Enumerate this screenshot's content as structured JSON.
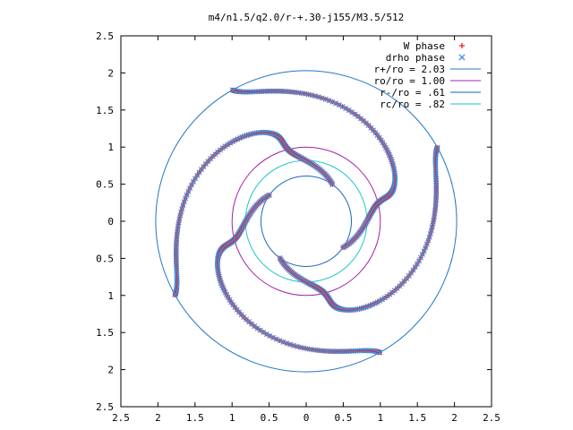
{
  "chart_data": {
    "type": "scatter",
    "title": "m4/n1.5/q2.0/r-+.30-j155/M3.5/512",
    "xlim": [
      -2.5,
      2.5
    ],
    "ylim": [
      -2.5,
      2.5
    ],
    "x_ticks": [
      "2.5",
      "2",
      "1.5",
      "1",
      "0.5",
      "0",
      "0.5",
      "1",
      "1.5",
      "2",
      "2.5"
    ],
    "y_ticks": [
      "2.5",
      "2",
      "1.5",
      "1",
      "0.5",
      "0",
      "0.5",
      "1",
      "1.5",
      "2",
      "2.5"
    ],
    "grid": false,
    "legend_position": "top-right",
    "legend": [
      {
        "label": "W phase",
        "kind": "points",
        "marker": "plus",
        "color": "#e8222a"
      },
      {
        "label": "drho phase",
        "kind": "points",
        "marker": "cross",
        "color": "#3e8fe0"
      },
      {
        "label": "r+/ro = 2.03",
        "kind": "circle",
        "radius": 2.03,
        "color": "#1f77c8"
      },
      {
        "label": "ro/ro = 1.00",
        "kind": "circle",
        "radius": 1.0,
        "color": "#a020a8"
      },
      {
        "label": "r-/ro = .61",
        "kind": "circle",
        "radius": 0.61,
        "color": "#1a66c0"
      },
      {
        "label": "rc/ro = .82",
        "kind": "circle",
        "radius": 0.82,
        "color": "#21c6c6"
      }
    ],
    "arms_description": "four-fold spiral phase pattern sampled between r = 0.61 and r = 2.03"
  }
}
